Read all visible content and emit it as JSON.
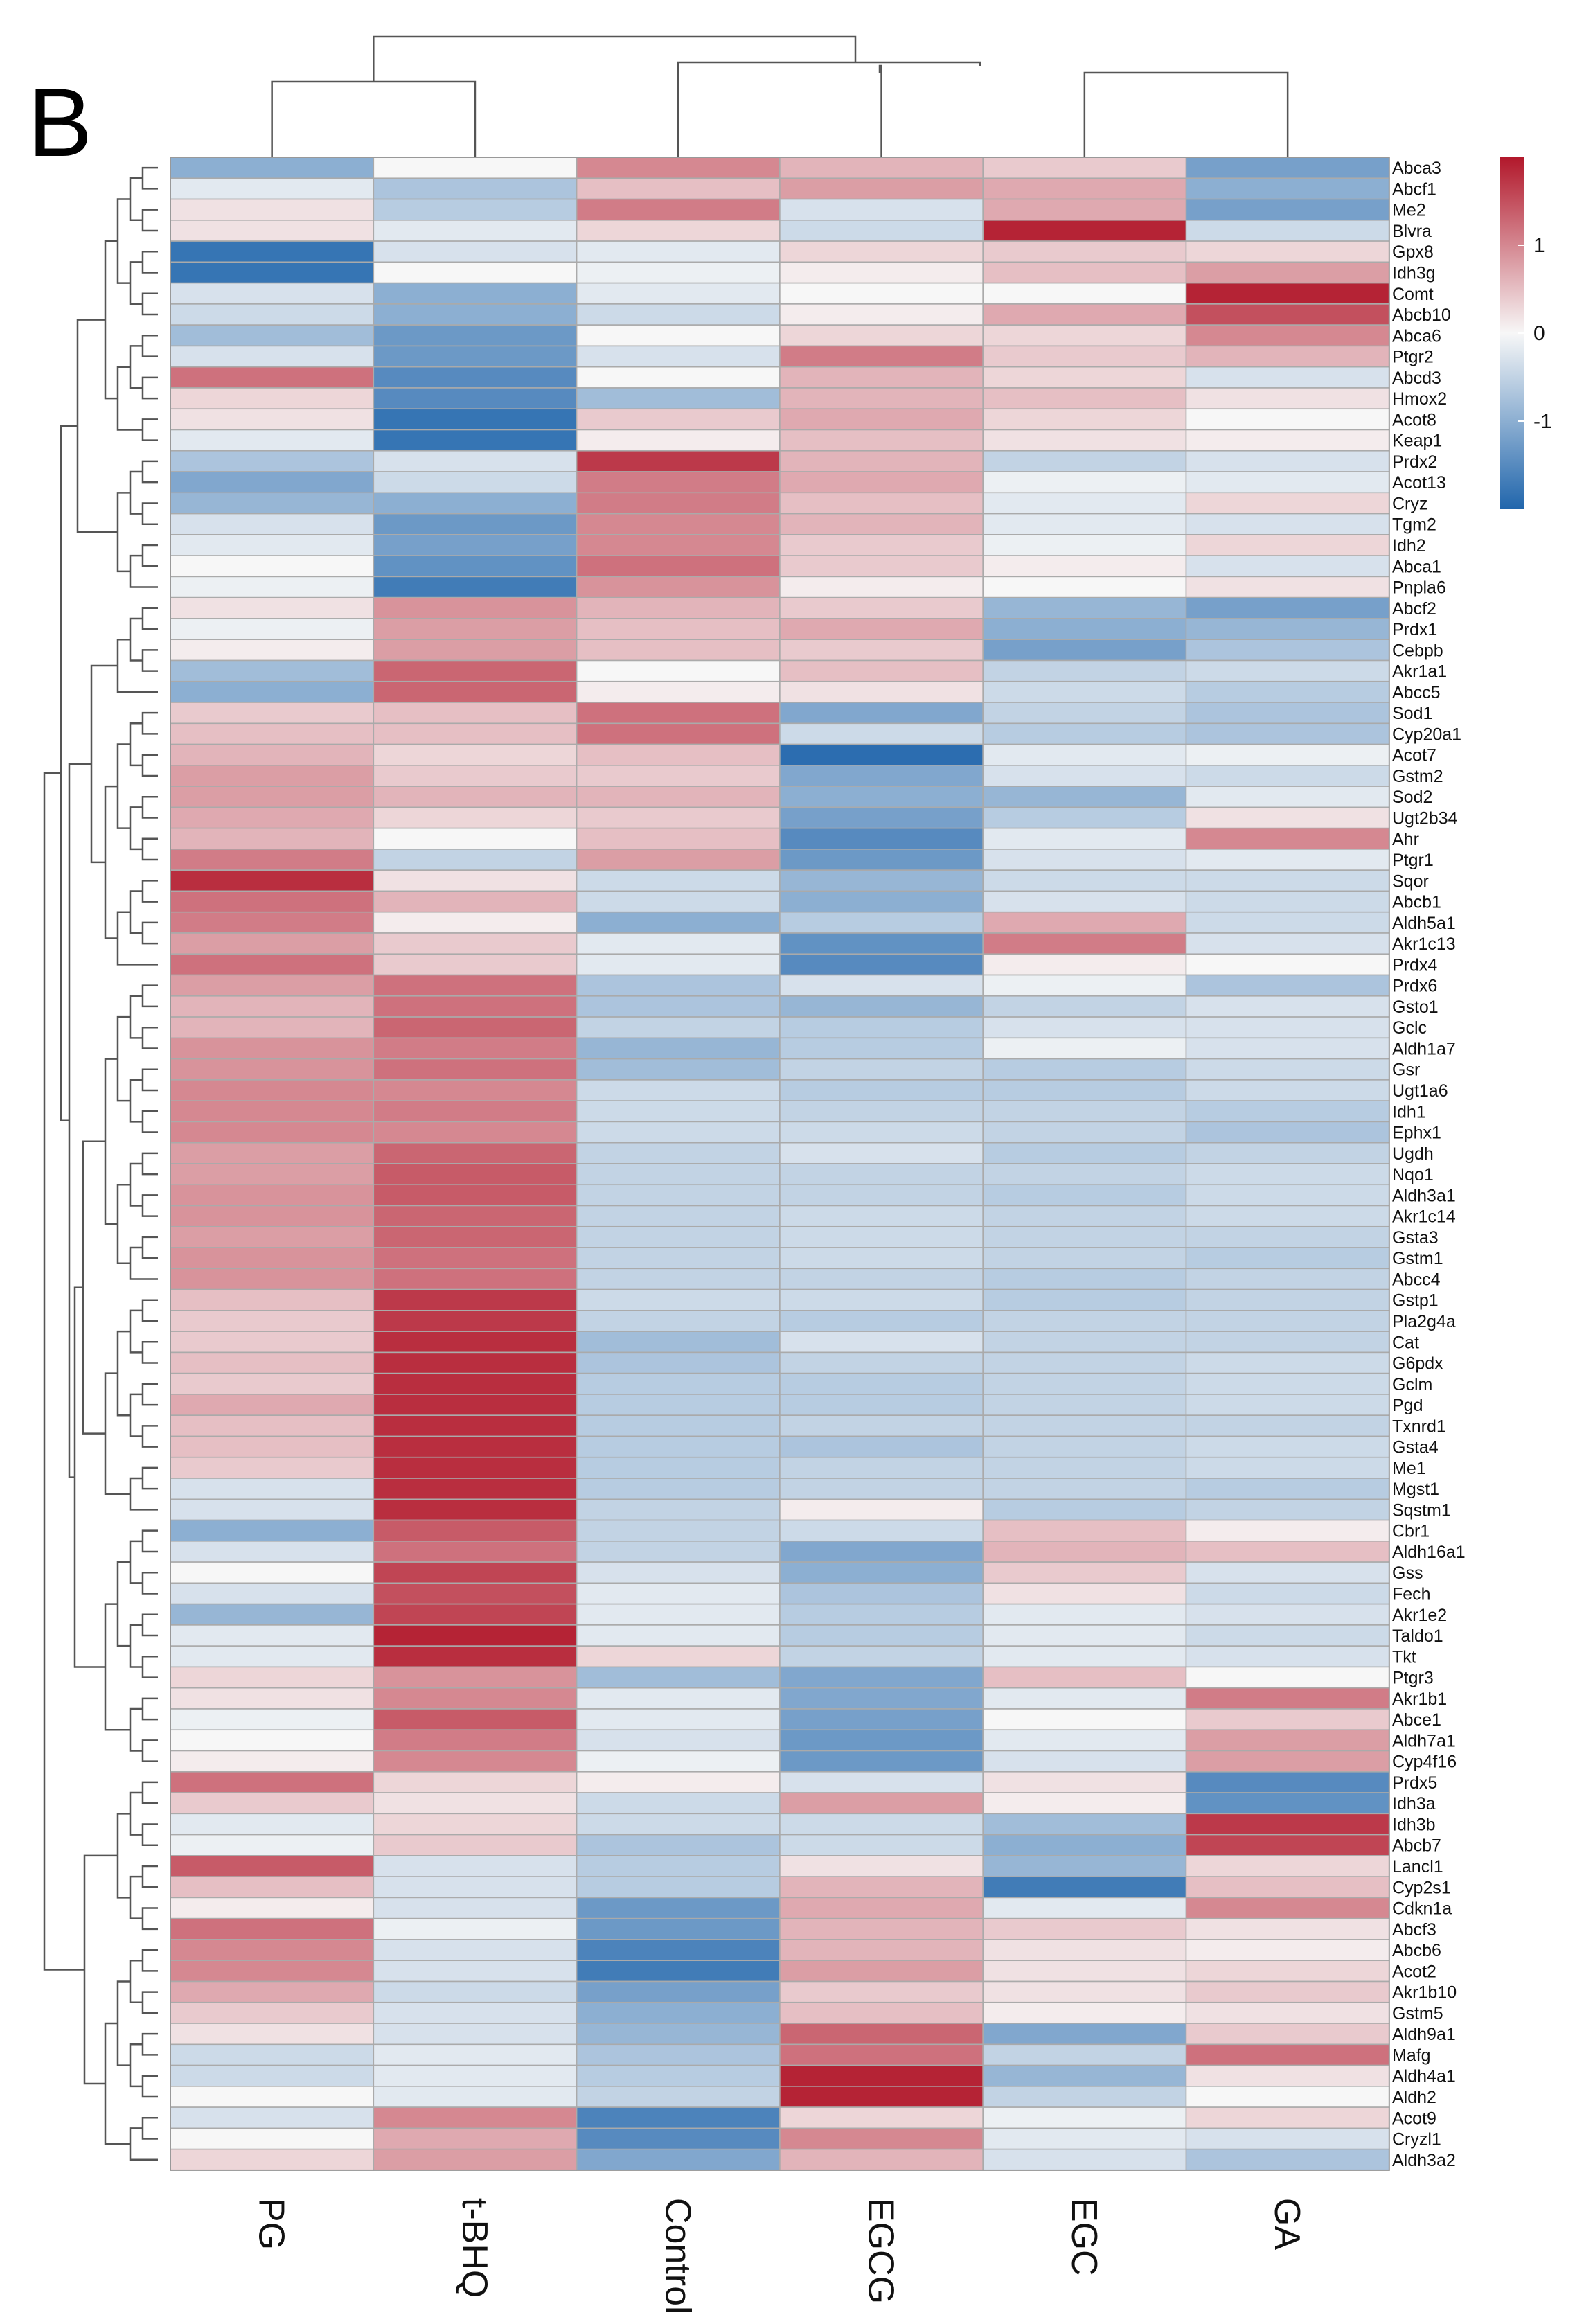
{
  "panel_label": "B",
  "chart_data": {
    "type": "heatmap",
    "title": "",
    "columns": [
      "PG",
      "t-BHQ",
      "Control",
      "EGCG",
      "EGC",
      "GA"
    ],
    "rows": [
      "Abca3",
      "Abcf1",
      "Me2",
      "Blvra",
      "Gpx8",
      "Idh3g",
      "Comt",
      "Abcb10",
      "Abca6",
      "Ptgr2",
      "Abcd3",
      "Hmox2",
      "Acot8",
      "Keap1",
      "Prdx2",
      "Acot13",
      "Cryz",
      "Tgm2",
      "Idh2",
      "Abca1",
      "Pnpla6",
      "Abcf2",
      "Prdx1",
      "Cebpb",
      "Akr1a1",
      "Abcc5",
      "Sod1",
      "Cyp20a1",
      "Acot7",
      "Gstm2",
      "Sod2",
      "Ugt2b34",
      "Ahr",
      "Ptgr1",
      "Sqor",
      "Abcb1",
      "Aldh5a1",
      "Akr1c13",
      "Prdx4",
      "Prdx6",
      "Gsto1",
      "Gclc",
      "Aldh1a7",
      "Gsr",
      "Ugt1a6",
      "Idh1",
      "Ephx1",
      "Ugdh",
      "Nqo1",
      "Aldh3a1",
      "Akr1c14",
      "Gsta3",
      "Gstm1",
      "Abcc4",
      "Gstp1",
      "Pla2g4a",
      "Cat",
      "G6pdx",
      "Gclm",
      "Pgd",
      "Txnrd1",
      "Gsta4",
      "Me1",
      "Mgst1",
      "Sqstm1",
      "Cbr1",
      "Aldh16a1",
      "Gss",
      "Fech",
      "Akr1e2",
      "Taldo1",
      "Tkt",
      "Ptgr3",
      "Akr1b1",
      "Abce1",
      "Aldh7a1",
      "Cyp4f16",
      "Prdx5",
      "Idh3a",
      "Idh3b",
      "Abcb7",
      "Lancl1",
      "Cyp2s1",
      "Cdkn1a",
      "Abcf3",
      "Abcb6",
      "Acot2",
      "Akr1b10",
      "Gstm5",
      "Aldh9a1",
      "Mafg",
      "Aldh4a1",
      "Aldh2",
      "Acot9",
      "Cryzl1",
      "Aldh3a2"
    ],
    "values": [
      [
        -1.0,
        0.0,
        1.0,
        0.6,
        0.4,
        -1.2
      ],
      [
        -0.2,
        -0.7,
        0.5,
        0.8,
        0.7,
        -1.0
      ],
      [
        0.2,
        -0.6,
        1.1,
        -0.3,
        0.7,
        -1.2
      ],
      [
        0.2,
        -0.2,
        0.3,
        -0.4,
        1.9,
        -0.4
      ],
      [
        -1.8,
        -0.3,
        -0.2,
        0.3,
        0.4,
        0.3
      ],
      [
        -1.8,
        0.0,
        -0.1,
        0.1,
        0.5,
        0.8
      ],
      [
        -0.3,
        -1.0,
        -0.2,
        0.0,
        0.0,
        1.9
      ],
      [
        -0.4,
        -1.0,
        -0.4,
        0.1,
        0.7,
        1.5
      ],
      [
        -0.8,
        -1.3,
        0.0,
        0.3,
        0.3,
        1.0
      ],
      [
        -0.3,
        -1.3,
        -0.3,
        1.1,
        0.4,
        0.6
      ],
      [
        1.2,
        -1.5,
        0.0,
        0.6,
        0.3,
        -0.3
      ],
      [
        0.3,
        -1.5,
        -0.8,
        0.6,
        0.5,
        0.2
      ],
      [
        0.2,
        -1.8,
        0.4,
        0.7,
        0.3,
        0.0
      ],
      [
        -0.2,
        -1.8,
        0.1,
        0.5,
        0.2,
        0.1
      ],
      [
        -0.7,
        -0.3,
        1.7,
        0.6,
        -0.5,
        -0.3
      ],
      [
        -1.1,
        -0.4,
        1.1,
        0.7,
        -0.1,
        -0.2
      ],
      [
        -0.9,
        -1.0,
        1.1,
        0.5,
        -0.2,
        0.3
      ],
      [
        -0.3,
        -1.3,
        1.0,
        0.6,
        -0.2,
        -0.3
      ],
      [
        -0.2,
        -1.2,
        1.0,
        0.4,
        -0.1,
        0.3
      ],
      [
        0.0,
        -1.4,
        1.2,
        0.4,
        0.1,
        -0.3
      ],
      [
        -0.1,
        -1.7,
        0.9,
        0.1,
        0.0,
        0.2
      ],
      [
        0.2,
        0.9,
        0.6,
        0.4,
        -0.9,
        -1.2
      ],
      [
        -0.1,
        0.8,
        0.5,
        0.7,
        -1.0,
        -0.9
      ],
      [
        0.1,
        0.8,
        0.5,
        0.4,
        -1.2,
        -0.7
      ],
      [
        -0.8,
        1.3,
        0.0,
        0.5,
        -0.5,
        -0.4
      ],
      [
        -1.0,
        1.3,
        0.1,
        0.2,
        -0.4,
        -0.6
      ],
      [
        0.4,
        0.5,
        1.2,
        -1.1,
        -0.5,
        -0.7
      ],
      [
        0.5,
        0.5,
        1.2,
        -0.4,
        -0.6,
        -0.7
      ],
      [
        0.6,
        0.3,
        0.5,
        -1.9,
        -0.2,
        -0.1
      ],
      [
        0.8,
        0.4,
        0.4,
        -1.1,
        -0.3,
        -0.4
      ],
      [
        0.8,
        0.6,
        0.6,
        -1.0,
        -0.9,
        -0.2
      ],
      [
        0.7,
        0.3,
        0.4,
        -1.2,
        -0.6,
        0.2
      ],
      [
        0.6,
        0.0,
        0.5,
        -1.5,
        -0.2,
        1.0
      ],
      [
        1.1,
        -0.5,
        0.8,
        -1.3,
        -0.3,
        -0.2
      ],
      [
        1.8,
        0.2,
        -0.4,
        -0.9,
        -0.4,
        -0.4
      ],
      [
        1.2,
        0.6,
        -0.4,
        -1.0,
        -0.3,
        -0.4
      ],
      [
        1.1,
        0.1,
        -1.0,
        -0.6,
        0.7,
        -0.4
      ],
      [
        0.8,
        0.4,
        -0.2,
        -1.4,
        1.1,
        -0.3
      ],
      [
        1.2,
        0.4,
        -0.2,
        -1.5,
        0.1,
        0.0
      ],
      [
        0.8,
        1.2,
        -0.7,
        -0.3,
        -0.1,
        -0.7
      ],
      [
        0.6,
        1.2,
        -0.7,
        -0.9,
        -0.5,
        -0.3
      ],
      [
        0.6,
        1.3,
        -0.5,
        -0.6,
        -0.3,
        -0.3
      ],
      [
        0.9,
        1.1,
        -0.9,
        -0.6,
        -0.1,
        -0.3
      ],
      [
        0.9,
        1.2,
        -0.8,
        -0.5,
        -0.6,
        -0.4
      ],
      [
        1.0,
        1.0,
        -0.4,
        -0.6,
        -0.6,
        -0.4
      ],
      [
        1.0,
        1.1,
        -0.4,
        -0.5,
        -0.5,
        -0.6
      ],
      [
        1.0,
        1.0,
        -0.4,
        -0.4,
        -0.5,
        -0.7
      ],
      [
        0.8,
        1.3,
        -0.5,
        -0.3,
        -0.6,
        -0.5
      ],
      [
        0.8,
        1.4,
        -0.5,
        -0.5,
        -0.5,
        -0.4
      ],
      [
        0.9,
        1.4,
        -0.5,
        -0.5,
        -0.6,
        -0.4
      ],
      [
        0.9,
        1.3,
        -0.5,
        -0.4,
        -0.5,
        -0.4
      ],
      [
        0.8,
        1.3,
        -0.5,
        -0.4,
        -0.5,
        -0.5
      ],
      [
        0.9,
        1.2,
        -0.5,
        -0.4,
        -0.5,
        -0.6
      ],
      [
        0.9,
        1.2,
        -0.5,
        -0.5,
        -0.6,
        -0.5
      ],
      [
        0.5,
        1.7,
        -0.4,
        -0.4,
        -0.6,
        -0.5
      ],
      [
        0.4,
        1.7,
        -0.5,
        -0.6,
        -0.5,
        -0.5
      ],
      [
        0.4,
        1.8,
        -0.8,
        -0.3,
        -0.5,
        -0.5
      ],
      [
        0.5,
        1.8,
        -0.7,
        -0.5,
        -0.5,
        -0.4
      ],
      [
        0.4,
        1.8,
        -0.6,
        -0.6,
        -0.5,
        -0.4
      ],
      [
        0.7,
        1.8,
        -0.6,
        -0.6,
        -0.5,
        -0.4
      ],
      [
        0.5,
        1.8,
        -0.6,
        -0.5,
        -0.5,
        -0.5
      ],
      [
        0.5,
        1.8,
        -0.6,
        -0.7,
        -0.5,
        -0.4
      ],
      [
        0.4,
        1.8,
        -0.6,
        -0.5,
        -0.5,
        -0.4
      ],
      [
        -0.3,
        1.8,
        -0.6,
        -0.5,
        -0.5,
        -0.6
      ],
      [
        -0.3,
        1.8,
        -0.5,
        0.1,
        -0.6,
        -0.5
      ],
      [
        -1.0,
        1.4,
        -0.5,
        -0.4,
        0.5,
        0.1
      ],
      [
        -0.3,
        1.2,
        -0.5,
        -1.1,
        0.6,
        0.5
      ],
      [
        0.0,
        1.6,
        -0.3,
        -1.0,
        0.4,
        -0.3
      ],
      [
        -0.3,
        1.5,
        -0.2,
        -0.7,
        0.2,
        -0.4
      ],
      [
        -0.9,
        1.6,
        -0.2,
        -0.6,
        -0.2,
        -0.3
      ],
      [
        -0.2,
        1.9,
        -0.2,
        -0.6,
        -0.2,
        -0.4
      ],
      [
        -0.2,
        1.8,
        0.3,
        -0.5,
        -0.2,
        -0.3
      ],
      [
        0.3,
        0.9,
        -0.8,
        -1.1,
        0.5,
        0.0
      ],
      [
        0.2,
        1.0,
        -0.2,
        -1.1,
        -0.2,
        1.1
      ],
      [
        -0.1,
        1.4,
        -0.2,
        -1.2,
        0.0,
        0.4
      ],
      [
        0.0,
        1.1,
        -0.3,
        -1.3,
        -0.2,
        0.8
      ],
      [
        0.1,
        1.0,
        -0.1,
        -1.3,
        -0.3,
        0.8
      ],
      [
        1.2,
        0.3,
        0.1,
        -0.3,
        0.2,
        -1.5
      ],
      [
        0.4,
        0.2,
        -0.4,
        0.8,
        0.1,
        -1.4
      ],
      [
        -0.2,
        0.3,
        -0.4,
        -0.4,
        -0.8,
        1.7
      ],
      [
        -0.1,
        0.4,
        -0.7,
        -0.4,
        -1.0,
        1.6
      ],
      [
        1.4,
        -0.3,
        -0.6,
        0.2,
        -0.9,
        0.3
      ],
      [
        0.5,
        -0.3,
        -0.6,
        0.6,
        -1.7,
        0.5
      ],
      [
        0.1,
        -0.3,
        -1.3,
        0.7,
        -0.2,
        1.0
      ],
      [
        1.2,
        -0.1,
        -1.3,
        0.6,
        0.4,
        0.2
      ],
      [
        1.0,
        -0.3,
        -1.6,
        0.6,
        0.2,
        0.1
      ],
      [
        1.0,
        -0.3,
        -1.7,
        0.8,
        0.2,
        0.3
      ],
      [
        0.7,
        -0.4,
        -1.2,
        0.4,
        0.2,
        0.4
      ],
      [
        0.4,
        -0.3,
        -1.0,
        0.5,
        0.1,
        0.2
      ],
      [
        0.2,
        -0.3,
        -0.9,
        1.3,
        -1.1,
        0.4
      ],
      [
        -0.4,
        -0.2,
        -0.7,
        1.2,
        -0.5,
        1.2
      ],
      [
        -0.4,
        -0.2,
        -0.6,
        1.9,
        -0.9,
        0.2
      ],
      [
        0.0,
        -0.2,
        -0.5,
        1.9,
        -0.5,
        0.0
      ],
      [
        -0.3,
        1.0,
        -1.6,
        0.3,
        -0.1,
        0.3
      ],
      [
        0.0,
        0.7,
        -1.5,
        1.0,
        -0.2,
        -0.3
      ],
      [
        0.3,
        0.8,
        -1.1,
        0.6,
        -0.3,
        -0.7
      ]
    ],
    "color_scale": {
      "low_color": "#2166ac",
      "mid_color": "#f7f7f7",
      "high_color": "#b2182b",
      "range": [
        -2,
        2
      ],
      "ticks": [
        1,
        0,
        -1
      ],
      "tick_labels": [
        "1",
        "0",
        "-1"
      ]
    },
    "legend": "right",
    "row_dendrogram": "left",
    "column_dendrogram": "top"
  }
}
